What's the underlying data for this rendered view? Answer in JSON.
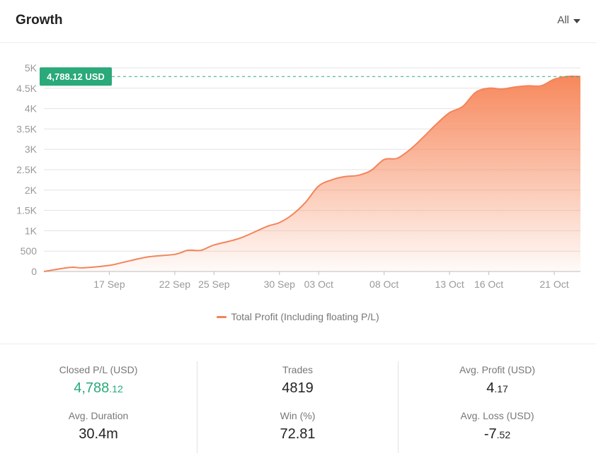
{
  "header": {
    "title": "Growth",
    "range_label": "All"
  },
  "badge": {
    "text": "4,788.12 USD"
  },
  "legend": {
    "label": "Total Profit (Including floating P/L)"
  },
  "colors": {
    "line": "#f3845a",
    "fill_top": "#f7885c",
    "badge": "#2aa97a",
    "positive": "#2aa97a"
  },
  "chart_data": {
    "type": "area",
    "title": "",
    "xlabel": "",
    "ylabel": "",
    "x_ticks": [
      "17 Sep",
      "22 Sep",
      "25 Sep",
      "30 Sep",
      "03 Oct",
      "08 Oct",
      "13 Oct",
      "16 Oct",
      "21 Oct"
    ],
    "y_ticks": [
      "0",
      "500",
      "1K",
      "1.5K",
      "2K",
      "2.5K",
      "3K",
      "3.5K",
      "4K",
      "4.5K",
      "5K"
    ],
    "ylim": [
      0,
      5000
    ],
    "grid": true,
    "legend_position": "bottom-center",
    "reference_line": {
      "value": 4788.12,
      "label": "4,788.12 USD"
    },
    "series": [
      {
        "name": "Total Profit (Including floating P/L)",
        "x": [
          "12 Sep",
          "14 Sep",
          "15 Sep",
          "17 Sep",
          "18 Sep",
          "20 Sep",
          "22 Sep",
          "23 Sep",
          "24 Sep",
          "25 Sep",
          "27 Sep",
          "29 Sep",
          "30 Sep",
          "01 Oct",
          "02 Oct",
          "03 Oct",
          "04 Oct",
          "05 Oct",
          "06 Oct",
          "07 Oct",
          "08 Oct",
          "09 Oct",
          "10 Oct",
          "11 Oct",
          "12 Oct",
          "13 Oct",
          "14 Oct",
          "15 Oct",
          "16 Oct",
          "17 Oct",
          "18 Oct",
          "19 Oct",
          "20 Oct",
          "21 Oct",
          "22 Oct",
          "23 Oct"
        ],
        "values": [
          0,
          100,
          90,
          150,
          220,
          360,
          420,
          520,
          520,
          650,
          820,
          1100,
          1200,
          1400,
          1700,
          2100,
          2250,
          2330,
          2360,
          2480,
          2750,
          2780,
          3000,
          3300,
          3620,
          3900,
          4050,
          4400,
          4500,
          4480,
          4530,
          4560,
          4560,
          4720,
          4788.12,
          4788.12
        ]
      }
    ]
  },
  "stats": {
    "closed_pl": {
      "label": "Closed P/L (USD)",
      "int": "4,788",
      "dec": ".12"
    },
    "avg_duration": {
      "label": "Avg. Duration",
      "value": "30.4m"
    },
    "trades": {
      "label": "Trades",
      "value": "4819"
    },
    "win": {
      "label": "Win (%)",
      "value": "72.81"
    },
    "avg_profit": {
      "label": "Avg. Profit (USD)",
      "int": "4",
      "dec": ".17"
    },
    "avg_loss": {
      "label": "Avg. Loss (USD)",
      "int": "-7",
      "dec": ".52"
    }
  }
}
